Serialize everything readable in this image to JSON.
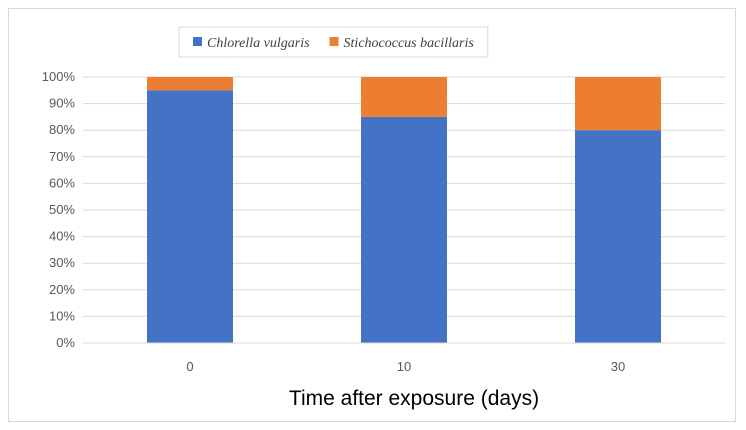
{
  "chart_data": {
    "type": "bar",
    "stacked": true,
    "categories": [
      "0",
      "10",
      "30"
    ],
    "series": [
      {
        "name": "Chlorella vulgaris",
        "color": "#4472c4",
        "values": [
          95,
          85,
          80
        ]
      },
      {
        "name": "Stichococcus bacillaris",
        "color": "#ed7d31",
        "values": [
          5,
          15,
          20
        ]
      }
    ],
    "title": "",
    "xlabel": "Time after exposure (days)",
    "ylabel": "",
    "ylim": [
      0,
      100
    ],
    "yticks": [
      "0%",
      "10%",
      "20%",
      "30%",
      "40%",
      "50%",
      "60%",
      "70%",
      "80%",
      "90%",
      "100%"
    ],
    "grid": true,
    "legend_position": "top"
  }
}
